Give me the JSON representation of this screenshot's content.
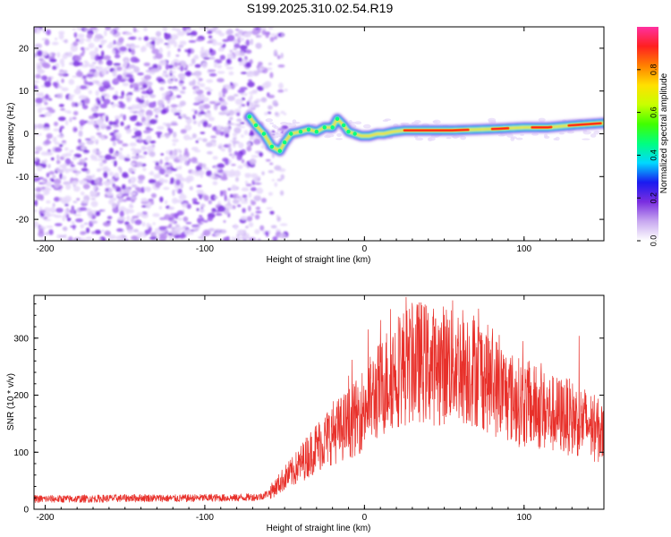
{
  "title": "S199.2025.310.02.54.R19",
  "chart_data": [
    {
      "type": "heatmap",
      "title": "S199.2025.310.02.54.R19",
      "xlabel": "Height of straight line (km)",
      "ylabel": "Frequency (Hz)",
      "xlim": [
        -207,
        150
      ],
      "ylim": [
        -25,
        25
      ],
      "xticks": [
        -200,
        -100,
        0,
        100
      ],
      "yticks": [
        -20,
        -10,
        0,
        10,
        20
      ],
      "noise_region_x": [
        -207,
        -60
      ],
      "ridge": {
        "x": [
          -72,
          -68,
          -63,
          -58,
          -53,
          -50,
          -46,
          -40,
          -35,
          -30,
          -25,
          -20,
          -17,
          -13,
          -10,
          -6,
          -2,
          3,
          8,
          12,
          18,
          25,
          40,
          55,
          70,
          85,
          100,
          115,
          130,
          150
        ],
        "frequency": [
          4,
          2,
          0,
          -3,
          -4,
          -2,
          0,
          0.5,
          1,
          0.5,
          1.5,
          1.5,
          3.5,
          2,
          0.5,
          0,
          -0.5,
          -0.5,
          0,
          0,
          0.5,
          0.8,
          0.8,
          0.8,
          1,
          1.2,
          1.5,
          1.5,
          2,
          2.5
        ]
      },
      "colorbar": {
        "label": "Normalized spectral amplitude",
        "range": [
          0,
          1
        ],
        "ticks": [
          0.0,
          0.2,
          0.4,
          0.6,
          0.8
        ],
        "tick_labels": [
          "0.0",
          "0.2",
          "0.4",
          "0.6",
          "0.8"
        ],
        "colors": [
          "#ffffff",
          "#c8a8f0",
          "#7a2ee0",
          "#1a1af0",
          "#00d8ff",
          "#00ff80",
          "#40ff00",
          "#c8ff00",
          "#ffe000",
          "#ff8000",
          "#ff2020",
          "#ff30a0"
        ]
      },
      "grid": false
    },
    {
      "type": "line",
      "xlabel": "Height of straight line (km)",
      "ylabel": "SNR (10 * v/v)",
      "xlim": [
        -207,
        150
      ],
      "ylim": [
        0,
        375
      ],
      "xticks": [
        -200,
        -100,
        0,
        100
      ],
      "yticks": [
        0,
        100,
        200,
        300
      ],
      "color": "#e8302a",
      "grid": false,
      "series": [
        {
          "x": [
            -207,
            -180,
            -160,
            -140,
            -120,
            -100,
            -80,
            -65,
            -60,
            -55,
            -50,
            -45,
            -40,
            -35,
            -30,
            -25,
            -20,
            -15,
            -10,
            -5,
            0,
            5,
            10,
            15,
            20,
            25,
            30,
            35,
            40,
            45,
            50,
            55,
            60,
            65,
            70,
            75,
            80,
            85,
            90,
            95,
            100,
            105,
            110,
            115,
            120,
            125,
            130,
            135,
            140,
            145,
            150
          ],
          "values": [
            18,
            18,
            19,
            20,
            19,
            20,
            20,
            22,
            28,
            40,
            55,
            65,
            80,
            95,
            110,
            120,
            135,
            140,
            150,
            160,
            180,
            195,
            210,
            230,
            245,
            250,
            255,
            260,
            255,
            250,
            255,
            260,
            255,
            250,
            245,
            235,
            220,
            210,
            200,
            190,
            185,
            180,
            175,
            170,
            165,
            165,
            160,
            155,
            150,
            140,
            130
          ]
        }
      ]
    }
  ]
}
